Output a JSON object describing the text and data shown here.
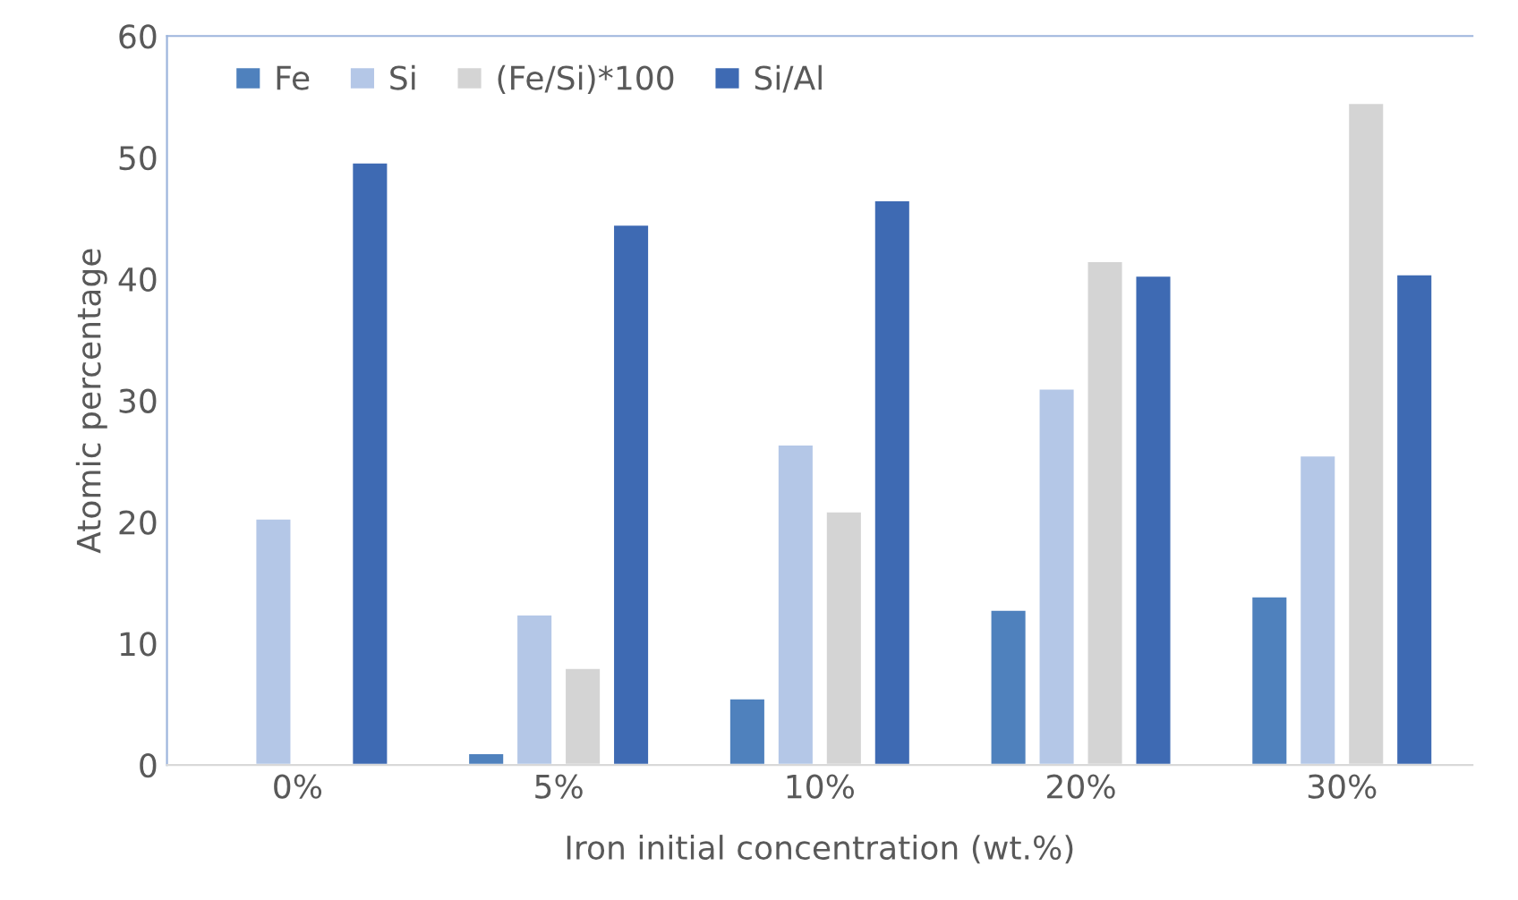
{
  "chart_data": {
    "type": "bar",
    "xlabel": "Iron initial concentration (wt.%)",
    "ylabel": "Atomic percentage",
    "categories": [
      "0%",
      "5%",
      "10%",
      "20%",
      "30%"
    ],
    "series": [
      {
        "name": "Fe",
        "color": "#4f81bd",
        "values": [
          null,
          1.0,
          5.5,
          12.8,
          13.9
        ]
      },
      {
        "name": "Si",
        "color": "#b4c7e7",
        "values": [
          20.3,
          12.4,
          26.4,
          31.0,
          25.5
        ]
      },
      {
        "name": "(Fe/Si)*100",
        "color": "#d4d4d4",
        "values": [
          null,
          8.0,
          20.9,
          41.5,
          54.5
        ]
      },
      {
        "name": "Si/Al",
        "color": "#3e6ab3",
        "values": [
          49.6,
          44.5,
          46.5,
          40.3,
          40.4
        ]
      }
    ],
    "ylim": [
      0,
      60
    ],
    "yticks": [
      0,
      10,
      20,
      30,
      40,
      50,
      60
    ],
    "grid": false,
    "legend": "top left"
  }
}
